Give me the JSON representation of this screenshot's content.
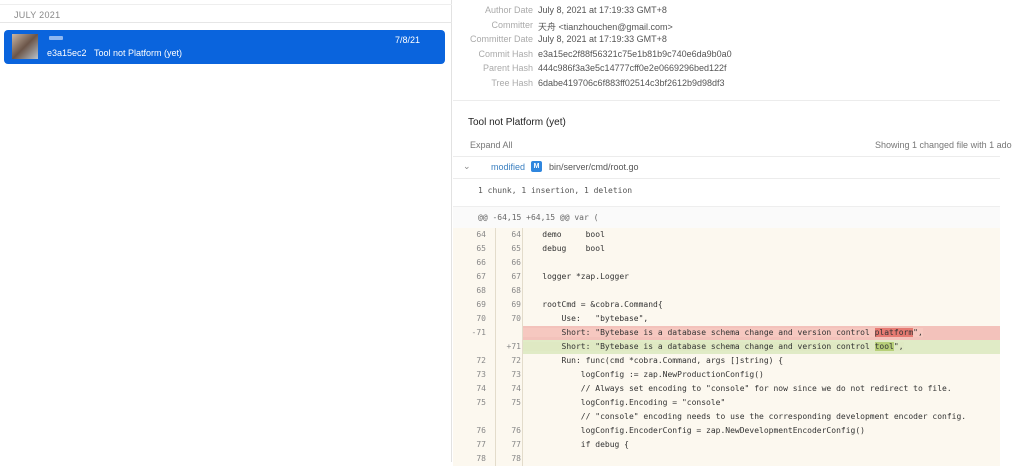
{
  "history": {
    "month": "JULY 2021",
    "commit": {
      "hash": "e3a15ec2",
      "message": "Tool not Platform (yet)",
      "date": "7/8/21"
    }
  },
  "details": {
    "meta": [
      {
        "key": "Author Date",
        "value": "July 8, 2021 at 17:19:33 GMT+8"
      },
      {
        "key": "Committer",
        "value": "天舟 <tianzhouchen@gmail.com>"
      },
      {
        "key": "Committer Date",
        "value": "July 8, 2021 at 17:19:33 GMT+8"
      },
      {
        "key": "Commit Hash",
        "value": "e3a15ec2f88f56321c75e1b81b9c740e6da9b0a0"
      },
      {
        "key": "Parent Hash",
        "value": "444c986f3a3e5c14777cff0e2e0669296bed122f"
      },
      {
        "key": "Tree Hash",
        "value": "6dabe419706c6f883ff02514c3bf2612b9d98df3"
      }
    ],
    "title": "Tool not Platform (yet)",
    "expand_all": "Expand All",
    "showing": "Showing 1 changed file with 1 ado"
  },
  "file": {
    "status": "modified",
    "badge": "M",
    "path": "bin/server/cmd/root.go",
    "summary": "1 chunk, 1 insertion, 1 deletion",
    "hunk": "@@ -64,15 +64,15 @@ var ("
  },
  "diff": [
    {
      "o": "64",
      "n": "64",
      "t": "ctx",
      "code": "    demo     bool"
    },
    {
      "o": "65",
      "n": "65",
      "t": "ctx",
      "code": "    debug    bool"
    },
    {
      "o": "66",
      "n": "66",
      "t": "ctx",
      "code": ""
    },
    {
      "o": "67",
      "n": "67",
      "t": "ctx",
      "code": "    logger *zap.Logger"
    },
    {
      "o": "68",
      "n": "68",
      "t": "ctx",
      "code": ""
    },
    {
      "o": "69",
      "n": "69",
      "t": "ctx",
      "code": "    rootCmd = &cobra.Command{"
    },
    {
      "o": "70",
      "n": "70",
      "t": "ctx",
      "code": "        Use:   \"bytebase\","
    },
    {
      "o": "-71",
      "n": "",
      "t": "del",
      "code": "        Short: \"Bytebase is a database schema change and version control ",
      "hl": "platform",
      "tail": "\","
    },
    {
      "o": "",
      "n": "+71",
      "t": "add",
      "code": "        Short: \"Bytebase is a database schema change and version control ",
      "hl": "tool",
      "tail": "\","
    },
    {
      "o": "72",
      "n": "72",
      "t": "ctx",
      "code": "        Run: func(cmd *cobra.Command, args []string) {"
    },
    {
      "o": "73",
      "n": "73",
      "t": "ctx",
      "code": "            logConfig := zap.NewProductionConfig()"
    },
    {
      "o": "74",
      "n": "74",
      "t": "ctx",
      "code": "            // Always set encoding to \"console\" for now since we do not redirect to file."
    },
    {
      "o": "75",
      "n": "75",
      "t": "ctx",
      "code": "            logConfig.Encoding = \"console\""
    },
    {
      "o": "",
      "n": "",
      "t": "ctx",
      "code": "            // \"console\" encoding needs to use the corresponding development encoder config."
    },
    {
      "o": "76",
      "n": "76",
      "t": "ctx",
      "code": "            logConfig.EncoderConfig = zap.NewDevelopmentEncoderConfig()"
    },
    {
      "o": "77",
      "n": "77",
      "t": "ctx",
      "code": "            if debug {"
    },
    {
      "o": "78",
      "n": "78",
      "t": "ctx",
      "code": ""
    }
  ]
}
